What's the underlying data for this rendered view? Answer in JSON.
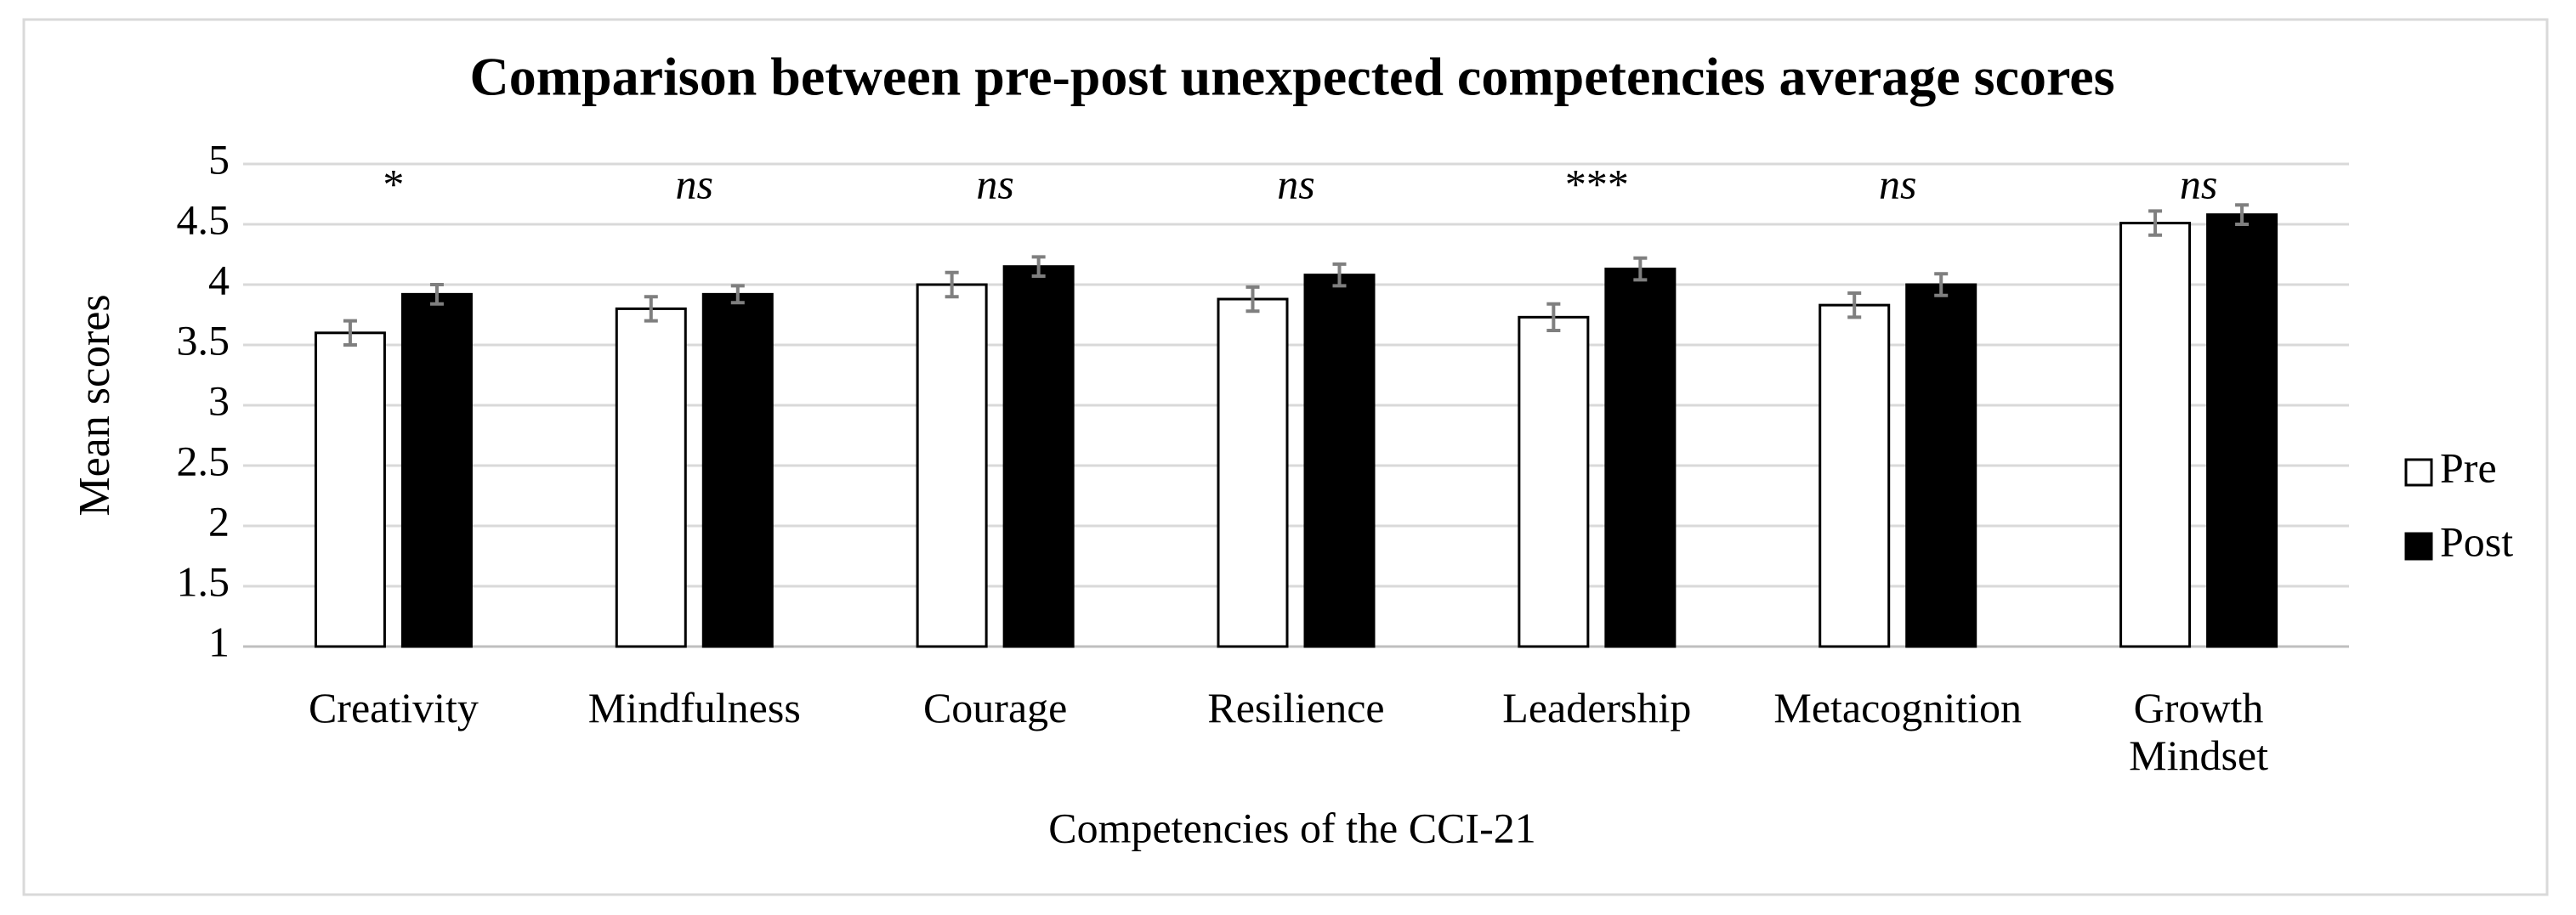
{
  "chart_data": {
    "type": "bar",
    "title": "Comparison between pre-post unexpected competencies average scores",
    "x_label": "Competencies of the CCI-21",
    "y_label": "Mean scores",
    "categories": [
      "Creativity",
      "Mindfulness",
      "Courage",
      "Resilience",
      "Leadership",
      "Metacognition",
      "Growth Mindset"
    ],
    "annotations": [
      "*",
      "ns",
      "ns",
      "ns",
      "***",
      "ns",
      "ns"
    ],
    "series": [
      {
        "name": "Pre",
        "color": "#ffffff",
        "values": [
          3.6,
          3.8,
          4.0,
          3.88,
          3.73,
          3.83,
          4.51
        ],
        "errors": [
          0.1,
          0.1,
          0.1,
          0.1,
          0.11,
          0.1,
          0.1
        ]
      },
      {
        "name": "Post",
        "color": "#000000",
        "values": [
          3.92,
          3.92,
          4.15,
          4.08,
          4.13,
          4.0,
          4.58
        ],
        "errors": [
          0.08,
          0.07,
          0.08,
          0.09,
          0.09,
          0.09,
          0.08
        ]
      }
    ],
    "ylim": [
      1,
      5
    ],
    "yticks": [
      1,
      1.5,
      2,
      2.5,
      3,
      3.5,
      4,
      4.5,
      5
    ],
    "grid": true,
    "legend": "right"
  }
}
